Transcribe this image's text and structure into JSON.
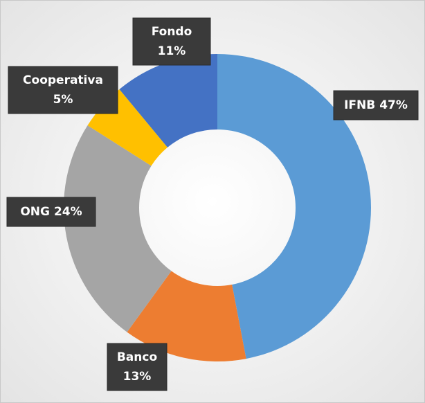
{
  "chart_data": {
    "type": "donut",
    "categories": [
      "IFNB",
      "Banco",
      "ONG",
      "Cooperativa",
      "Fondo"
    ],
    "values": [
      47,
      13,
      24,
      5,
      11
    ],
    "value_labels": [
      "47%",
      "13%",
      "24%",
      "5%",
      "11%"
    ],
    "colors": [
      "#5B9BD5",
      "#ED7D31",
      "#A5A5A5",
      "#FFC000",
      "#4472C4"
    ]
  }
}
